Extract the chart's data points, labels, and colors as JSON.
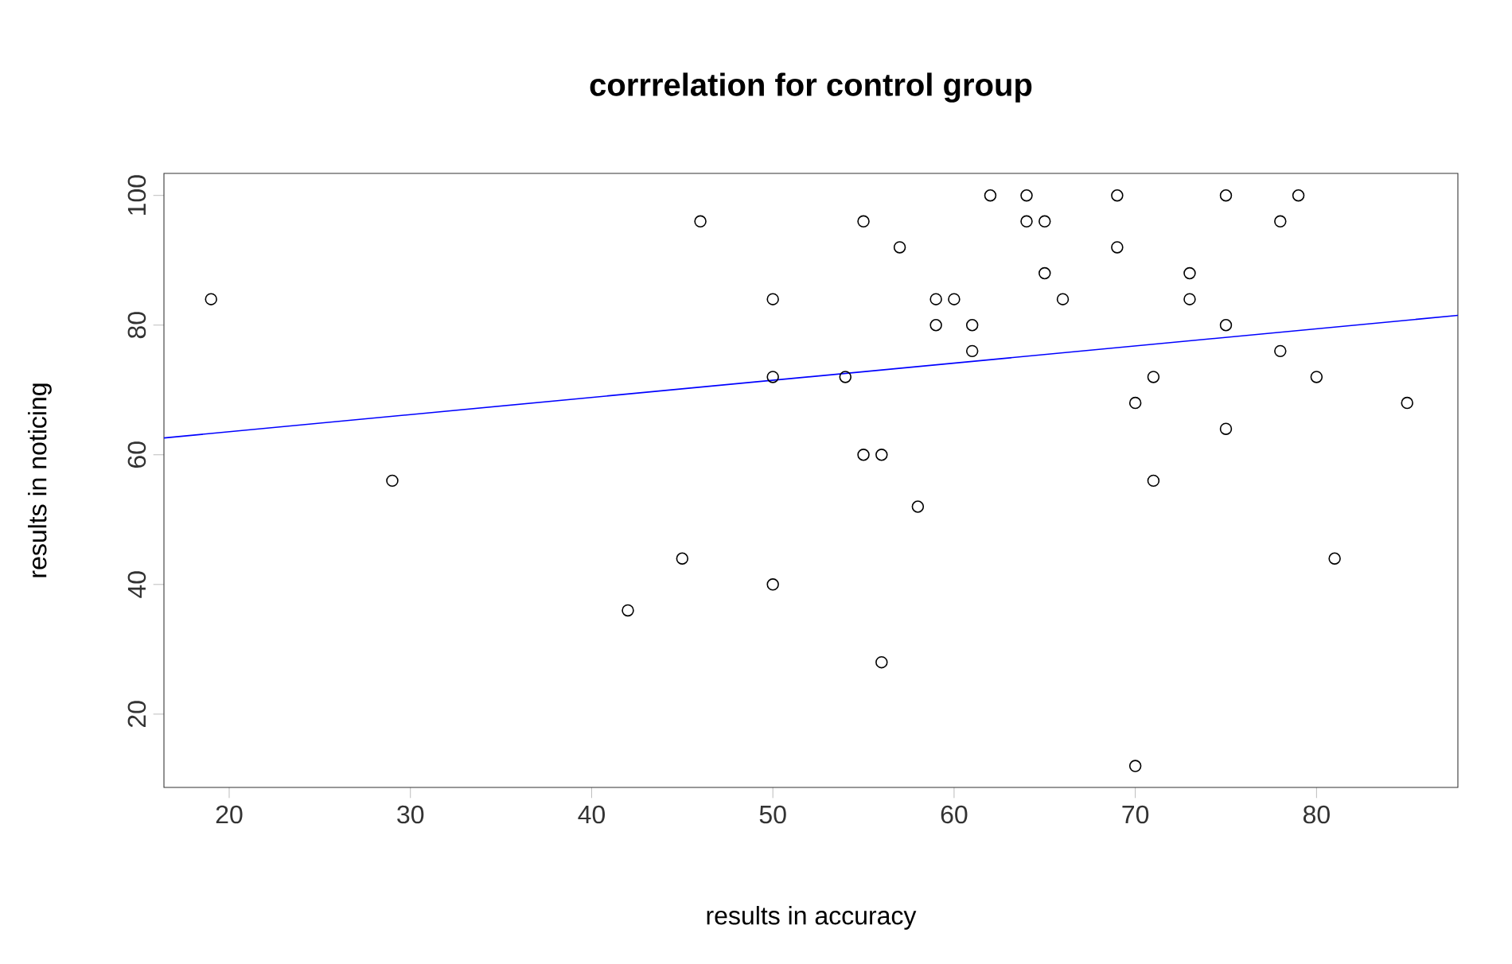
{
  "chart_data": {
    "type": "scatter",
    "title": "corrrelation for control group",
    "xlabel": "results in accuracy",
    "ylabel": "results in noticing",
    "xlim": [
      16.4,
      87.8
    ],
    "ylim": [
      8.7,
      103.4
    ],
    "xticks": [
      20,
      30,
      40,
      50,
      60,
      70,
      80
    ],
    "yticks": [
      20,
      40,
      60,
      80,
      100
    ],
    "grid": false,
    "series": [
      {
        "color": "#000000",
        "marker": "circle",
        "x": [
          19,
          29,
          42,
          45,
          46,
          50,
          50,
          50,
          54,
          55,
          55,
          56,
          56,
          57,
          58,
          59,
          59,
          60,
          61,
          61,
          62,
          64,
          64,
          65,
          65,
          66,
          69,
          69,
          70,
          70,
          71,
          71,
          73,
          73,
          75,
          75,
          75,
          78,
          78,
          79,
          80,
          81,
          85
        ],
        "values": [
          84,
          56,
          36,
          44,
          96,
          84,
          72,
          40,
          72,
          96,
          60,
          60,
          28,
          92,
          52,
          84,
          80,
          84,
          80,
          76,
          100,
          100,
          96,
          96,
          88,
          84,
          100,
          92,
          68,
          12,
          72,
          56,
          88,
          84,
          100,
          80,
          64,
          96,
          76,
          100,
          72,
          44,
          68
        ]
      },
      {
        "type": "line",
        "color": "#0000ff",
        "line_style": "solid",
        "x": [
          16.4,
          87.8
        ],
        "values": [
          62.6,
          81.5
        ]
      }
    ]
  }
}
